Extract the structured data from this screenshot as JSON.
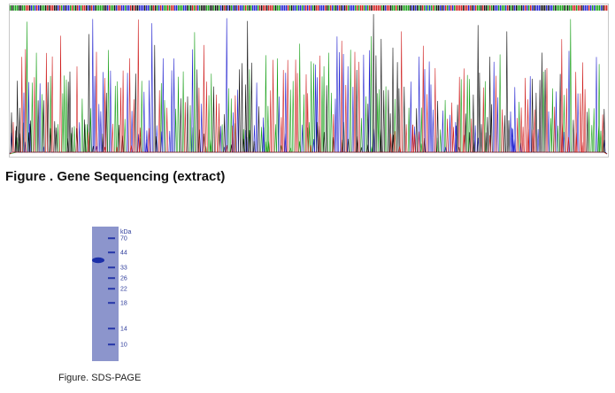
{
  "sequencing": {
    "caption": "Figure . Gene Sequencing (extract)",
    "trace_colors": {
      "A": "#18a018",
      "C": "#2222d0",
      "G": "#111111",
      "T": "#d02020"
    }
  },
  "sds_page": {
    "caption": "Figure. SDS-PAGE",
    "unit": "kDa",
    "markers": [
      "70",
      "44",
      "33",
      "26",
      "22",
      "18",
      "14",
      "10"
    ],
    "lane_color": "#8c95cc",
    "band_color": "#1b2fa8"
  }
}
